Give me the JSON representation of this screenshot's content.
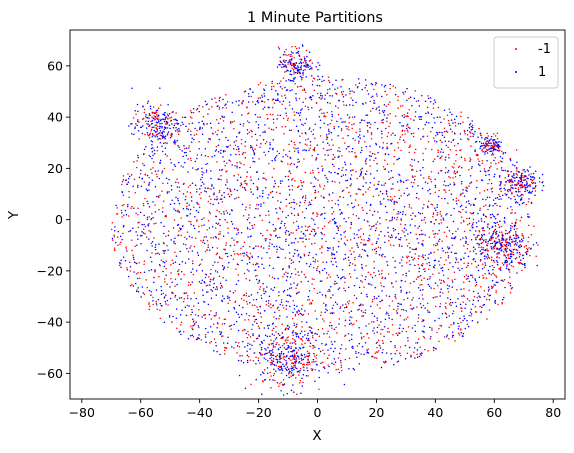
{
  "chart_data": {
    "type": "scatter",
    "title": "1 Minute Partitions",
    "xlabel": "X",
    "ylabel": "Y",
    "xlim": [
      -84,
      84
    ],
    "ylim": [
      -70,
      74
    ],
    "xticks": [
      -80,
      -60,
      -40,
      -20,
      0,
      20,
      40,
      60,
      80
    ],
    "xtick_labels": [
      "−80",
      "−60",
      "−40",
      "−20",
      "0",
      "20",
      "40",
      "60",
      "80"
    ],
    "yticks": [
      -60,
      -40,
      -20,
      0,
      20,
      40,
      60
    ],
    "ytick_labels": [
      "−60",
      "−40",
      "−20",
      "0",
      "20",
      "40",
      "60"
    ],
    "grid": false,
    "legend_position": "top-right",
    "series": [
      {
        "name": "-1",
        "color": "#ff0000",
        "marker": "small-dot"
      },
      {
        "name": "1",
        "color": "#0000ff",
        "marker": "small-dot"
      }
    ],
    "clusters": [
      {
        "x": -55,
        "y": 37,
        "spread": 4
      },
      {
        "x": -7,
        "y": 61,
        "spread": 3
      },
      {
        "x": 69,
        "y": 15,
        "spread": 3
      },
      {
        "x": 63,
        "y": -11,
        "spread": 5
      },
      {
        "x": -10,
        "y": -54,
        "spread": 6
      },
      {
        "x": 59,
        "y": 29,
        "spread": 2
      }
    ]
  }
}
